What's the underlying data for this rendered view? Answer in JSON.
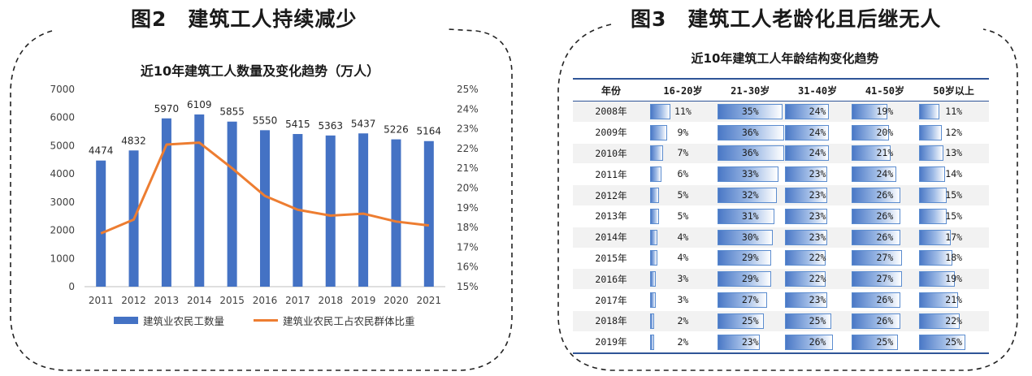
{
  "heading_left": {
    "num": "图2",
    "text": "建筑工人持续减少"
  },
  "heading_right": {
    "num": "图3",
    "text": "建筑工人老龄化且后继无人"
  },
  "chart_data": [
    {
      "type": "bar",
      "title": "近10年建筑工人数量及变化趋势（万人）",
      "categories": [
        "2011",
        "2012",
        "2013",
        "2014",
        "2015",
        "2016",
        "2017",
        "2018",
        "2019",
        "2020",
        "2021"
      ],
      "series": [
        {
          "name": "建筑业农民工数量",
          "type": "bar",
          "axis": "left",
          "values": [
            4474,
            4832,
            5970,
            6109,
            5855,
            5550,
            5415,
            5363,
            5437,
            5226,
            5164
          ]
        },
        {
          "name": "建筑业农民工占农民群体比重",
          "type": "line",
          "axis": "right",
          "values": [
            17.7,
            18.4,
            22.2,
            22.3,
            21.0,
            19.6,
            18.9,
            18.6,
            18.7,
            18.3,
            18.1
          ]
        }
      ],
      "y_left": {
        "ylim": [
          0,
          7000
        ],
        "ticks": [
          "0",
          "1000",
          "2000",
          "3000",
          "4000",
          "5000",
          "6000",
          "7000"
        ]
      },
      "y_right": {
        "ylim": [
          15,
          25
        ],
        "ticks": [
          "15%",
          "16%",
          "17%",
          "18%",
          "19%",
          "20%",
          "21%",
          "22%",
          "23%",
          "24%",
          "25%"
        ]
      },
      "legend": "bottom",
      "colors": {
        "bar": "#4472c4",
        "line": "#ed7d31"
      }
    },
    {
      "type": "table",
      "title": "近10年建筑工人年龄结构变化趋势",
      "columns": [
        "年份",
        "16-20岁",
        "21-30岁",
        "31-40岁",
        "41-50岁",
        "50岁以上"
      ],
      "rows": [
        {
          "year": "2008年",
          "values": [
            11,
            35,
            24,
            19,
            11
          ]
        },
        {
          "year": "2009年",
          "values": [
            9,
            36,
            24,
            20,
            12
          ]
        },
        {
          "year": "2010年",
          "values": [
            7,
            36,
            24,
            21,
            13
          ]
        },
        {
          "year": "2011年",
          "values": [
            6,
            33,
            23,
            24,
            14
          ]
        },
        {
          "year": "2012年",
          "values": [
            5,
            32,
            23,
            26,
            15
          ]
        },
        {
          "year": "2013年",
          "values": [
            5,
            31,
            23,
            26,
            15
          ]
        },
        {
          "year": "2014年",
          "values": [
            4,
            30,
            23,
            26,
            17
          ]
        },
        {
          "year": "2015年",
          "values": [
            4,
            29,
            22,
            27,
            18
          ]
        },
        {
          "year": "2016年",
          "values": [
            3,
            29,
            22,
            27,
            19
          ]
        },
        {
          "year": "2017年",
          "values": [
            3,
            27,
            23,
            26,
            21
          ]
        },
        {
          "year": "2018年",
          "values": [
            2,
            25,
            25,
            26,
            22
          ]
        },
        {
          "year": "2019年",
          "values": [
            2,
            23,
            26,
            25,
            25
          ]
        }
      ],
      "bar_color": "#4a78c6"
    }
  ]
}
